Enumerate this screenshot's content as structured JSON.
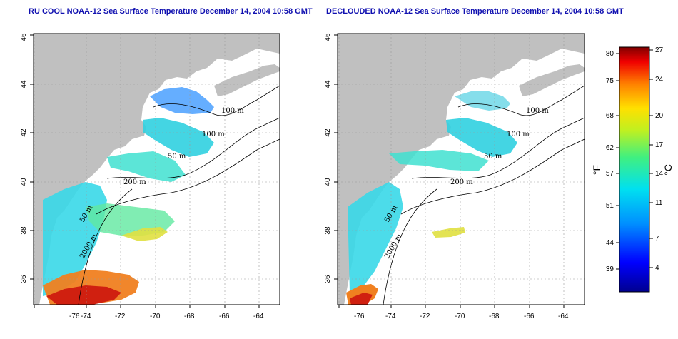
{
  "maps": [
    {
      "title": "RU COOL NOAA-12 Sea Surface Temperature December 14, 2004 10:58 GMT",
      "contour_labels": [
        "100 m",
        "100 m",
        "200 m",
        "50 m",
        "2000 m",
        "50 m"
      ]
    },
    {
      "title": "DECLOUDED NOAA-12 Sea Surface Temperature December 14, 2004 10:58 GMT",
      "contour_labels": [
        "100 m",
        "100 m",
        "200 m",
        "50 m",
        "2000 m",
        "50 m"
      ]
    }
  ],
  "axes": {
    "lon_ticks": [
      "-76",
      "-74",
      "-72",
      "-70",
      "-68",
      "-66",
      "-64"
    ],
    "lat_ticks": [
      "36",
      "38",
      "40",
      "42",
      "44",
      "46"
    ]
  },
  "colorbar": {
    "fahrenheit_ticks": [
      "80",
      "75",
      "68",
      "62",
      "57",
      "51",
      "44",
      "39"
    ],
    "celsius_ticks": [
      "27",
      "24",
      "20",
      "17",
      "14",
      "11",
      "7",
      "4"
    ],
    "fahrenheit_unit": "°F",
    "celsius_unit": "°C"
  },
  "colors": {
    "land": "#c0c0c0",
    "title": "#1010b0",
    "cold": "#0000a0",
    "warm": "#a00000"
  }
}
